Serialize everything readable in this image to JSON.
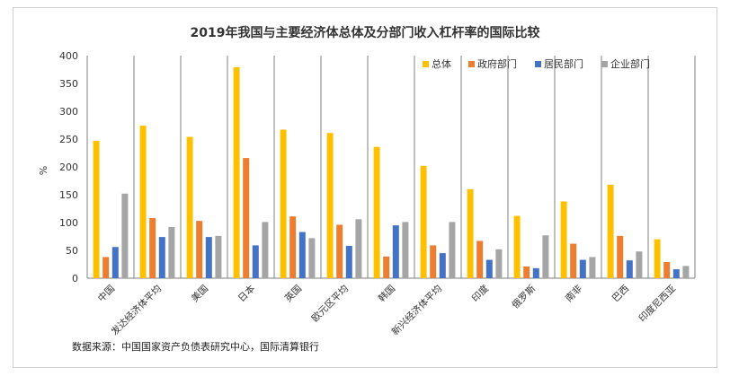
{
  "chart_data": {
    "type": "bar",
    "title": "2019年我国与主要经济体总体及分部门收入杠杆率的国际比较",
    "ylabel": "%",
    "ylim": [
      0,
      400
    ],
    "yticks": [
      0,
      50,
      100,
      150,
      200,
      250,
      300,
      350,
      400
    ],
    "categories": [
      "中国",
      "发达经济体平均",
      "美国",
      "日本",
      "英国",
      "欧元区平均",
      "韩国",
      "新兴经济体平均",
      "印度",
      "俄罗斯",
      "南非",
      "巴西",
      "印度尼西亚"
    ],
    "series": [
      {
        "name": "总体",
        "color": "#FFC000",
        "values": [
          247,
          274,
          254,
          379,
          267,
          261,
          236,
          202,
          160,
          112,
          138,
          168,
          70
        ]
      },
      {
        "name": "政府部门",
        "color": "#ED7D31",
        "values": [
          38,
          108,
          103,
          216,
          111,
          96,
          39,
          59,
          67,
          21,
          62,
          76,
          29
        ]
      },
      {
        "name": "居民部门",
        "color": "#4472C4",
        "values": [
          56,
          74,
          74,
          59,
          83,
          58,
          95,
          45,
          33,
          18,
          33,
          32,
          16
        ]
      },
      {
        "name": "企业部门",
        "color": "#A5A5A5",
        "values": [
          152,
          92,
          76,
          101,
          72,
          106,
          101,
          101,
          52,
          77,
          38,
          48,
          22
        ]
      }
    ],
    "legend_position": "top-right",
    "grid": false,
    "category_separators": true
  },
  "source_note": "数据来源：中国国家资产负债表研究中心，国际清算银行"
}
